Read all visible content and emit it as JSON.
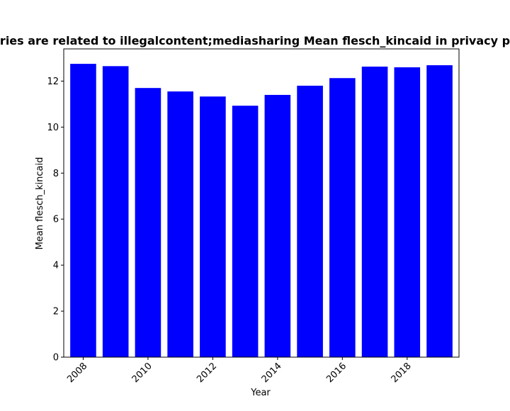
{
  "chart_data": {
    "type": "bar",
    "title": "ries are related to illegalcontent;mediasharing Mean flesch_kincaid in privacy p",
    "xlabel": "Year",
    "ylabel": "Mean flesch_kincaid",
    "categories": [
      2008,
      2009,
      2010,
      2011,
      2012,
      2013,
      2014,
      2015,
      2016,
      2017,
      2018,
      2019
    ],
    "values": [
      12.75,
      12.65,
      11.7,
      11.55,
      11.33,
      10.93,
      11.4,
      11.8,
      12.13,
      12.63,
      12.6,
      12.69
    ],
    "x_ticks": [
      "2008",
      "2010",
      "2012",
      "2014",
      "2016",
      "2018"
    ],
    "y_ticks": [
      "0",
      "2",
      "4",
      "6",
      "8",
      "10",
      "12"
    ],
    "ylim": [
      0,
      13.4
    ],
    "bar_color": "#0000ff",
    "grid": false,
    "legend": "none"
  }
}
